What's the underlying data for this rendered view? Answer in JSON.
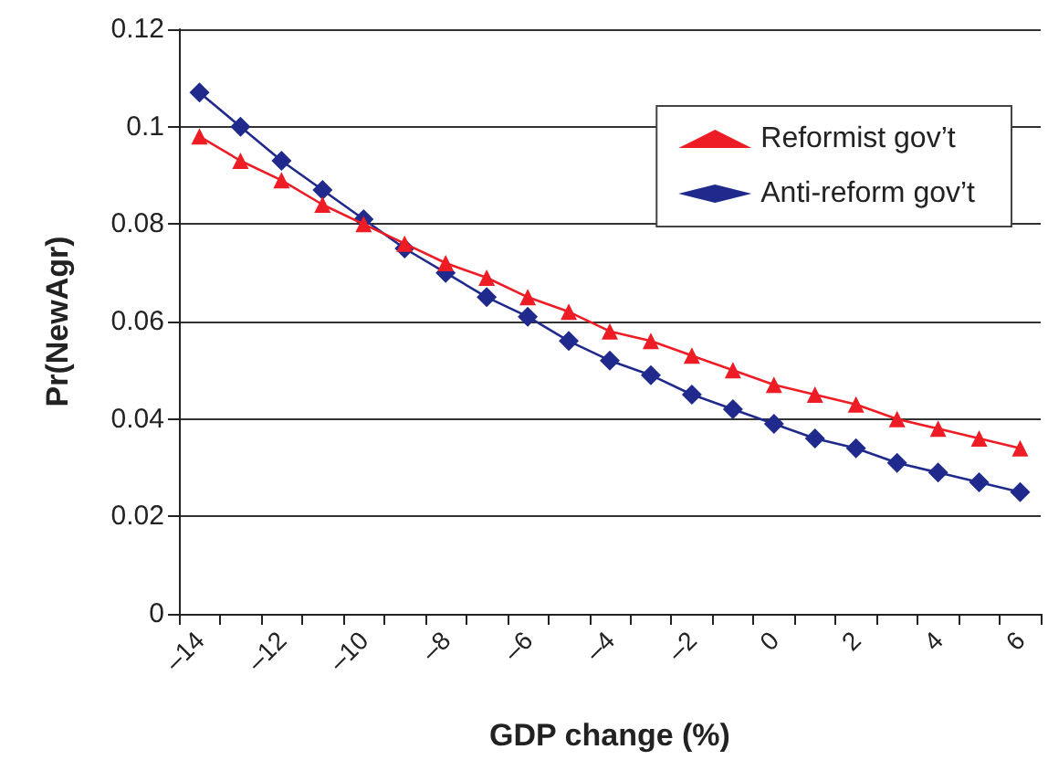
{
  "chart_data": {
    "type": "line",
    "xlabel": "GDP change (%)",
    "ylabel": "Pr(NewAgr)",
    "categories": [
      "–14",
      null,
      "–12",
      null,
      "–10",
      null,
      "–8",
      null,
      "–6",
      null,
      "–4",
      null,
      "–2",
      null,
      "0",
      null,
      "2",
      null,
      "4",
      null,
      "6"
    ],
    "series": [
      {
        "name": "Reformist gov’t",
        "color": "#ee1c25",
        "marker": "triangle",
        "values": [
          0.098,
          0.093,
          0.089,
          0.084,
          0.08,
          0.076,
          0.072,
          0.069,
          0.065,
          0.062,
          0.058,
          0.056,
          0.053,
          0.05,
          0.047,
          0.045,
          0.043,
          0.04,
          0.038,
          0.036,
          0.034
        ]
      },
      {
        "name": "Anti-reform gov’t",
        "color": "#1f2a8c",
        "marker": "diamond",
        "values": [
          0.107,
          0.1,
          0.093,
          0.087,
          0.081,
          0.075,
          0.07,
          0.065,
          0.061,
          0.056,
          0.052,
          0.049,
          0.045,
          0.042,
          0.039,
          0.036,
          0.034,
          0.031,
          0.029,
          0.027,
          0.025
        ]
      }
    ],
    "ylim": [
      0,
      0.12
    ],
    "yticks": [
      0,
      0.02,
      0.04,
      0.06,
      0.08,
      0.1,
      0.12
    ],
    "grid": "y",
    "legend": "top right",
    "line_style": "solid"
  }
}
